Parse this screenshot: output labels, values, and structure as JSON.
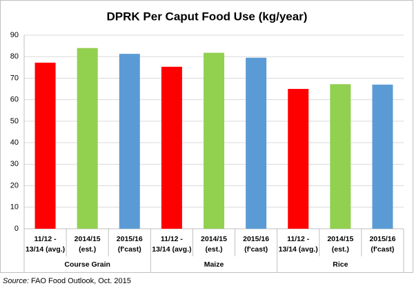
{
  "chart_data": {
    "type": "grouped-bar",
    "title": "DPRK Per Caput Food Use (kg/year)",
    "categories": [
      [
        "11/12 -",
        "13/14 (avg.)"
      ],
      [
        "2014/15",
        "(est.)"
      ],
      [
        "2015/16",
        "(f'cast)"
      ]
    ],
    "colors": [
      "#ff0000",
      "#92d050",
      "#5b9bd5"
    ],
    "groups": [
      {
        "label": "Course Grain",
        "values": [
          77.2,
          84,
          81.3
        ]
      },
      {
        "label": "Maize",
        "values": [
          75.3,
          81.8,
          79.5
        ]
      },
      {
        "label": "Rice",
        "values": [
          65,
          67.2,
          67
        ]
      }
    ],
    "ylim": [
      0,
      90
    ],
    "yticks": [
      0,
      10,
      20,
      30,
      40,
      50,
      60,
      70,
      80,
      90
    ],
    "grid": true
  },
  "source": {
    "label": "Source:",
    "text": "FAO Food Outlook, Oct. 2015"
  }
}
